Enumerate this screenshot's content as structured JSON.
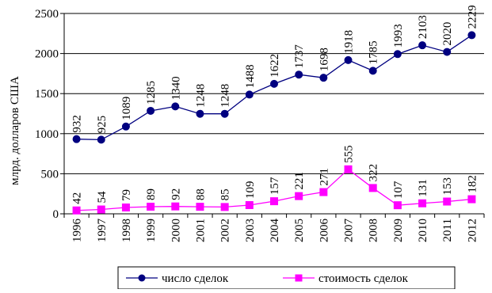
{
  "chart_data": {
    "type": "line",
    "title": "",
    "xlabel": "",
    "ylabel": "млрд. долларов США",
    "ylim": [
      0,
      2500
    ],
    "y_ticks": [
      0,
      500,
      1000,
      1500,
      2000,
      2500
    ],
    "grid": "horizontal",
    "legend_position": "bottom",
    "categories": [
      "1996",
      "1997",
      "1998",
      "1999",
      "2000",
      "2001",
      "2002",
      "2003",
      "2004",
      "2005",
      "2006",
      "2007",
      "2008",
      "2009",
      "2010",
      "2011",
      "2012"
    ],
    "series": [
      {
        "name": "число сделок",
        "color": "#000080",
        "marker": "circle",
        "values": [
          932,
          925,
          1089,
          1285,
          1340,
          1248,
          1248,
          1488,
          1622,
          1737,
          1698,
          1918,
          1785,
          1993,
          2103,
          2020,
          2229
        ]
      },
      {
        "name": "стоимость сделок",
        "color": "#ff00ff",
        "marker": "square",
        "values": [
          42,
          54,
          79,
          89,
          92,
          88,
          85,
          109,
          157,
          221,
          271,
          555,
          322,
          107,
          131,
          153,
          182
        ]
      }
    ]
  }
}
